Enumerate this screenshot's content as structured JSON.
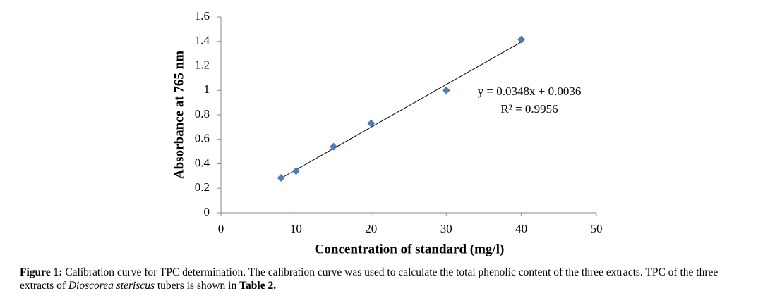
{
  "chart_data": {
    "type": "scatter",
    "x_label": "Concentration of standard (mg/l)",
    "y_label": "Absorbance at 765 nm",
    "series": [
      {
        "name": "Absorbance",
        "color": "#4a7ebb",
        "x": [
          8,
          10,
          15,
          20,
          30,
          40
        ],
        "values": [
          0.285,
          0.34,
          0.54,
          0.73,
          1.0,
          1.415
        ]
      }
    ],
    "xlim": [
      0,
      50
    ],
    "xticks": [
      0,
      10,
      20,
      30,
      40,
      50
    ],
    "ylim": [
      0,
      1.6
    ],
    "yticks": [
      0,
      0.2,
      0.4,
      0.6,
      0.8,
      1,
      1.2,
      1.4,
      1.6
    ],
    "grid": false,
    "trendline": {
      "slope": 0.0348,
      "intercept": 0.0036,
      "color": "#000000",
      "equation": "y = 0.0348x + 0.0036",
      "r_squared": "R² = 0.9956"
    }
  },
  "caption": {
    "label": "Figure 1:",
    "text": "Calibration curve for TPC determination. The calibration curve was used to calculate the total phenolic content of the three extracts. TPC of the three extracts of",
    "species": "Dioscorea steriscus",
    "text_after": "tubers is shown in",
    "table_ref": "Table 2."
  }
}
